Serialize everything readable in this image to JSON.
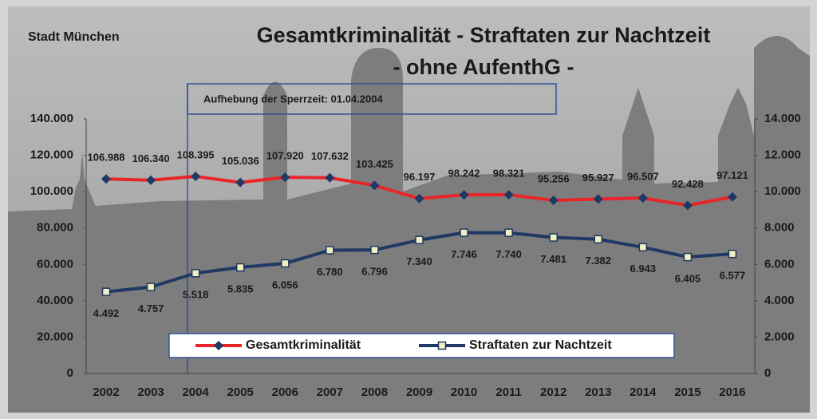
{
  "chart_data": {
    "type": "line",
    "title": "Gesamtkriminalität - Straftaten zur Nachtzeit",
    "subtitle": "- ohne AufenthG -",
    "annotations": [
      "Stadt München",
      "Aufhebung der Sperrzeit: 01.04.2004"
    ],
    "categories": [
      "2002",
      "2003",
      "2004",
      "2005",
      "2006",
      "2007",
      "2008",
      "2009",
      "2010",
      "2011",
      "2012",
      "2013",
      "2014",
      "2015",
      "2016"
    ],
    "series": [
      {
        "name": "Gesamtkriminalität",
        "color": "#e8262a",
        "marker_color": "#1f3864",
        "values": [
          106988,
          106340,
          108395,
          105036,
          107920,
          107632,
          103425,
          96197,
          98242,
          98321,
          95256,
          95927,
          96507,
          92428,
          97121
        ],
        "value_labels": [
          "106.988",
          "106.340",
          "108.395",
          "105.036",
          "107.920",
          "107.632",
          "103.425",
          "96.197",
          "98.242",
          "98.321",
          "95.256",
          "95.927",
          "96.507",
          "92.428",
          "97.121"
        ]
      },
      {
        "name": "Straftaten zur Nachtzeit",
        "color": "#1f3864",
        "marker_color": "#f2f0c0",
        "axis": "y2",
        "values": [
          4492,
          4757,
          5518,
          5835,
          6056,
          6780,
          6796,
          7340,
          7746,
          7740,
          7481,
          7382,
          6943,
          6405,
          6577
        ],
        "value_labels": [
          "4.492",
          "4.757",
          "5.518",
          "5.835",
          "6.056",
          "6.780",
          "6.796",
          "7.340",
          "7.746",
          "7.740",
          "7.481",
          "7.382",
          "6.943",
          "6.405",
          "6.577"
        ]
      }
    ],
    "ylim": [
      0,
      140000
    ],
    "yticks": [
      0,
      {
        "value": 20000,
        "label": "20.000"
      },
      {
        "value": 40000,
        "label": "40.000"
      },
      {
        "value": 60000,
        "label": "60.000"
      },
      {
        "value": 80000,
        "label": "80.000"
      },
      {
        "value": 100000,
        "label": "100.000"
      },
      {
        "value": 120000,
        "label": "120.000"
      },
      {
        "value": 140000,
        "label": "140.000"
      }
    ],
    "y2lim": [
      0,
      14000
    ],
    "y2ticks": [
      0,
      {
        "value": 2000,
        "label": "2.000"
      },
      {
        "value": 4000,
        "label": "4.000"
      },
      {
        "value": 6000,
        "label": "6.000"
      },
      {
        "value": 8000,
        "label": "8.000"
      },
      {
        "value": 10000,
        "label": "10.000"
      },
      {
        "value": 12000,
        "label": "12.000"
      },
      {
        "value": 14000,
        "label": "14.000"
      }
    ],
    "legend": "bottom"
  }
}
